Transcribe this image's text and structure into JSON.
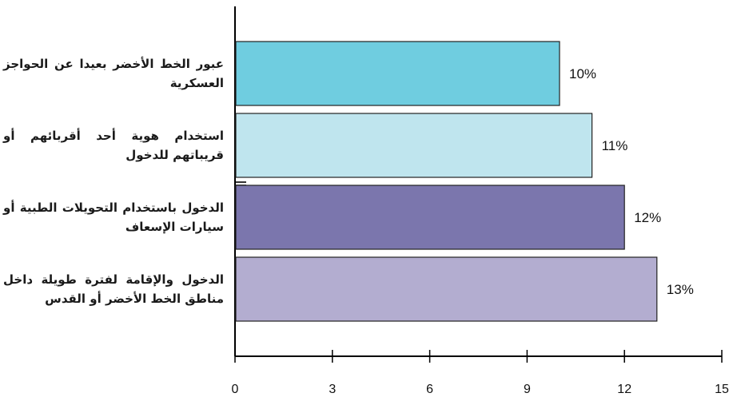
{
  "chart_data": {
    "type": "bar",
    "orientation": "horizontal",
    "categories": [
      "عبور الخط الأخضر بعيدا عن الحواجز العسكرية",
      "استخدام هوية أحد أقربائهم أو قريباتهم للدخول",
      "الدخول باستخدام التحويلات الطبية أو سيارات الإسعاف",
      "الدخول والإقامة لفترة طويلة داخل مناطق الخط الأخضر أو القدس"
    ],
    "values": [
      10,
      11,
      12,
      13
    ],
    "data_labels": [
      "10%",
      "11%",
      "12%",
      "13%"
    ],
    "bar_colors": [
      "#6fcde0",
      "#bfe5ee",
      "#7b76ad",
      "#b3add0"
    ],
    "xlim": [
      0,
      15
    ],
    "x_ticks": [
      0,
      3,
      6,
      9,
      12,
      15
    ],
    "title": "",
    "xlabel": "",
    "ylabel": "",
    "grid": false,
    "legend": "none"
  }
}
